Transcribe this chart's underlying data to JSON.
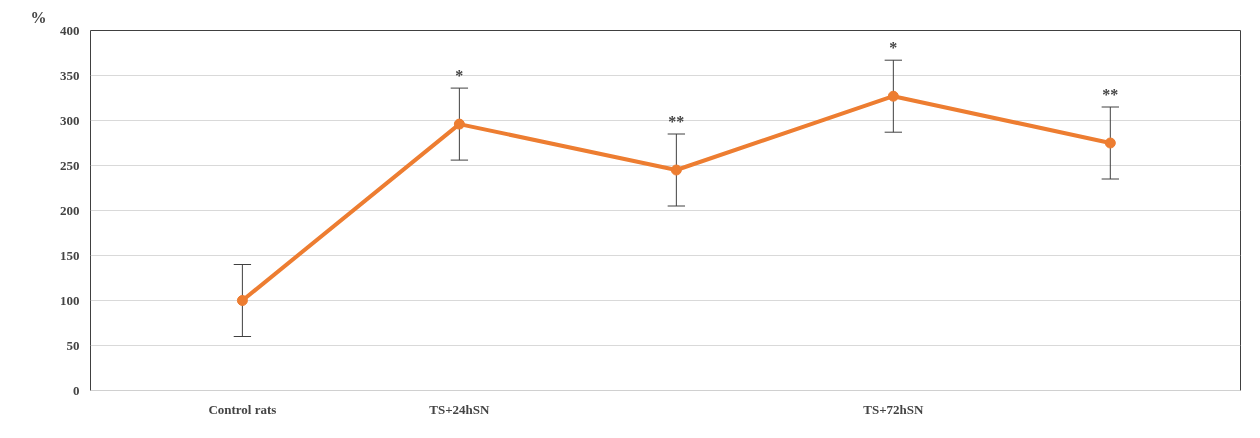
{
  "chart_data": {
    "type": "line",
    "ylabel": "%",
    "categories": [
      "Control rats",
      "TS+24hSN",
      null,
      "TS+72hSN",
      null
    ],
    "series": [
      {
        "color": "#ed7d31",
        "values": [
          100,
          296,
          245,
          327,
          275
        ],
        "errors": [
          40,
          40,
          40,
          40,
          40
        ],
        "value_labels": [
          null,
          "*",
          "**",
          "*",
          "**"
        ]
      }
    ],
    "ylim": [
      0,
      400
    ],
    "yticks": [
      0,
      50,
      100,
      150,
      200,
      250,
      300,
      350,
      400
    ],
    "grid": "y",
    "marker": "circle",
    "line_style": "solid"
  }
}
